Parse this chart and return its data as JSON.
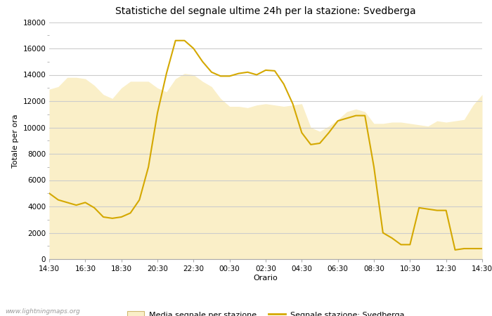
{
  "title": "Statistiche del segnale ultime 24h per la stazione: Svedberga",
  "xlabel": "Orario",
  "ylabel": "Totale per ora",
  "watermark": "www.lightningmaps.org",
  "xtick_labels": [
    "14:30",
    "16:30",
    "18:30",
    "20:30",
    "22:30",
    "00:30",
    "02:30",
    "04:30",
    "06:30",
    "08:30",
    "10:30",
    "12:30",
    "14:30"
  ],
  "ylim": [
    0,
    18000
  ],
  "yticks": [
    0,
    2000,
    4000,
    6000,
    8000,
    10000,
    12000,
    14000,
    16000,
    18000
  ],
  "fill_color": "#FAEFC8",
  "line_color": "#D4A800",
  "fill_edge_color": "#E8C840",
  "background_color": "#FFFFFF",
  "grid_color": "#CCCCCC",
  "legend_fill_label": "Media segnale per stazione",
  "legend_line_label": "Segnale stazione: Svedberga",
  "signal_x": [
    0,
    0.5,
    1,
    1.5,
    2,
    2.5,
    3,
    3.5,
    4,
    4.5,
    5,
    5.5,
    6,
    6.5,
    7,
    7.5,
    8,
    8.5,
    9,
    9.5,
    10,
    10.5,
    11,
    11.5,
    12,
    12.5,
    13,
    13.5,
    14,
    14.5,
    15,
    15.5,
    16,
    16.5,
    17,
    17.5,
    18,
    18.5,
    19,
    19.5,
    20,
    20.5,
    21,
    21.5,
    22,
    22.5,
    23,
    23.5,
    24
  ],
  "signal_y": [
    5000,
    4500,
    4300,
    4100,
    4300,
    3900,
    3200,
    3100,
    3200,
    3500,
    4500,
    7000,
    11100,
    14100,
    16600,
    16600,
    16000,
    15000,
    14200,
    13900,
    13900,
    14100,
    14200,
    14000,
    14350,
    14300,
    13300,
    11800,
    9600,
    8700,
    8800,
    9600,
    10500,
    10700,
    10900,
    10900,
    7000,
    2000,
    1600,
    1100,
    1100,
    3900,
    3800,
    3700,
    3700,
    700,
    800,
    800,
    800
  ],
  "avg_x": [
    0,
    0.5,
    1,
    1.5,
    2,
    2.5,
    3,
    3.5,
    4,
    4.5,
    5,
    5.5,
    6,
    6.5,
    7,
    7.5,
    8,
    8.5,
    9,
    9.5,
    10,
    10.5,
    11,
    11.5,
    12,
    12.5,
    13,
    13.5,
    14,
    14.5,
    15,
    15.5,
    16,
    16.5,
    17,
    17.5,
    18,
    18.5,
    19,
    19.5,
    20,
    20.5,
    21,
    21.5,
    22,
    22.5,
    23,
    23.5,
    24
  ],
  "avg_y": [
    12900,
    13100,
    13800,
    13800,
    13700,
    13200,
    12500,
    12200,
    13000,
    13500,
    13500,
    13500,
    13000,
    12700,
    13700,
    14100,
    14000,
    13500,
    13100,
    12200,
    11600,
    11600,
    11500,
    11700,
    11800,
    11700,
    11600,
    11700,
    11800,
    10000,
    9700,
    10100,
    10600,
    11200,
    11400,
    11200,
    10300,
    10300,
    10400,
    10400,
    10300,
    10200,
    10100,
    10500,
    10400,
    10500,
    10600,
    11700,
    12500
  ]
}
